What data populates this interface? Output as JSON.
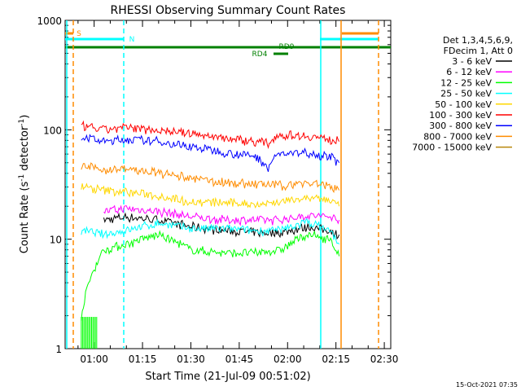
{
  "chart_data": {
    "type": "line",
    "title": "RHESSI Observing Summary Count Rates",
    "xlabel": "Start Time (21-Jul-09 00:51:02)",
    "ylabel": "Count Rate (s⁻¹ detector⁻¹)",
    "ylabel_base": "Count Rate (s",
    "ylabel_sup1": "-1",
    "ylabel_mid": " detector",
    "ylabel_sup2": "-1",
    "ylabel_end": ")",
    "yscale": "log",
    "ylim": [
      1,
      1000
    ],
    "xlim_minutes": [
      51.0,
      152.0
    ],
    "x_ticks": [
      {
        "m": 60,
        "label": "01:00"
      },
      {
        "m": 75,
        "label": "01:15"
      },
      {
        "m": 90,
        "label": "01:30"
      },
      {
        "m": 105,
        "label": "01:45"
      },
      {
        "m": 120,
        "label": "02:00"
      },
      {
        "m": 135,
        "label": "02:15"
      },
      {
        "m": 150,
        "label": "02:30"
      }
    ],
    "y_ticks": [
      {
        "v": 1,
        "label": "1"
      },
      {
        "v": 10,
        "label": "10"
      },
      {
        "v": 100,
        "label": "100"
      },
      {
        "v": 1000,
        "label": "1000"
      }
    ],
    "legend_header": [
      "Det 1,3,4,5,6,9,",
      "FDecim 1, Att 0"
    ],
    "legend_placement": "right",
    "series": [
      {
        "name": "3 - 6 keV",
        "color": "#000000",
        "x": [
          63,
          70,
          80,
          90,
          100,
          110,
          118,
          126,
          133,
          136
        ],
        "y": [
          15,
          16,
          15,
          13,
          12,
          11.5,
          11.5,
          13,
          12,
          11
        ]
      },
      {
        "name": "6 - 12 keV",
        "color": "#ff00ff",
        "x": [
          63,
          70,
          80,
          90,
          100,
          110,
          118,
          126,
          133,
          136
        ],
        "y": [
          18,
          19,
          18,
          16,
          15,
          15,
          15,
          16.5,
          16,
          15
        ]
      },
      {
        "name": "12 - 25 keV",
        "color": "#00ff00",
        "x": [
          56,
          63,
          70,
          80,
          90,
          100,
          110,
          118,
          126,
          133,
          136
        ],
        "y": [
          1.9,
          8,
          9,
          11,
          8,
          7.5,
          7.5,
          8,
          11,
          10,
          7
        ]
      },
      {
        "name": "25 - 50 keV",
        "color": "#00ffff",
        "x": [
          56,
          63,
          70,
          80,
          90,
          100,
          110,
          118,
          126,
          133,
          136
        ],
        "y": [
          12,
          11,
          12,
          14,
          12.5,
          12.5,
          12,
          12,
          14.5,
          12,
          9
        ]
      },
      {
        "name": "50 - 100 keV",
        "color": "#ffd700",
        "x": [
          56,
          63,
          70,
          80,
          90,
          100,
          110,
          118,
          126,
          133,
          136
        ],
        "y": [
          30,
          28,
          27,
          25,
          22,
          21.5,
          21,
          22,
          24,
          23,
          20
        ]
      },
      {
        "name": "100 - 300 keV",
        "color": "#ff0000",
        "x": [
          56,
          63,
          70,
          80,
          90,
          100,
          110,
          114,
          117,
          126,
          133,
          136
        ],
        "y": [
          108,
          100,
          105,
          100,
          92,
          85,
          78,
          75,
          90,
          88,
          82,
          78
        ]
      },
      {
        "name": "300 - 800 keV",
        "color": "#0000ff",
        "x": [
          56,
          63,
          70,
          80,
          90,
          100,
          110,
          114,
          117,
          126,
          133,
          136
        ],
        "y": [
          88,
          78,
          82,
          78,
          70,
          63,
          57,
          46,
          60,
          62,
          57,
          50
        ]
      },
      {
        "name": "800 - 7000 keV",
        "color": "#ff8c00",
        "x": [
          56,
          63,
          70,
          80,
          90,
          100,
          110,
          118,
          126,
          133,
          136
        ],
        "y": [
          47,
          43,
          44,
          40,
          36,
          33,
          32,
          31,
          33,
          31,
          28
        ]
      },
      {
        "name": "7000 - 15000 keV",
        "color": "#b8860b",
        "x": [],
        "y": []
      }
    ],
    "annotations": [
      {
        "label": "S",
        "color": "#ff8c00"
      },
      {
        "label": "N",
        "color": "#00ffff"
      },
      {
        "label": "RD9",
        "color": "#008000"
      },
      {
        "label": "RD4",
        "color": "#008000"
      }
    ],
    "timestamp": "15-Oct-2021 07:35"
  }
}
